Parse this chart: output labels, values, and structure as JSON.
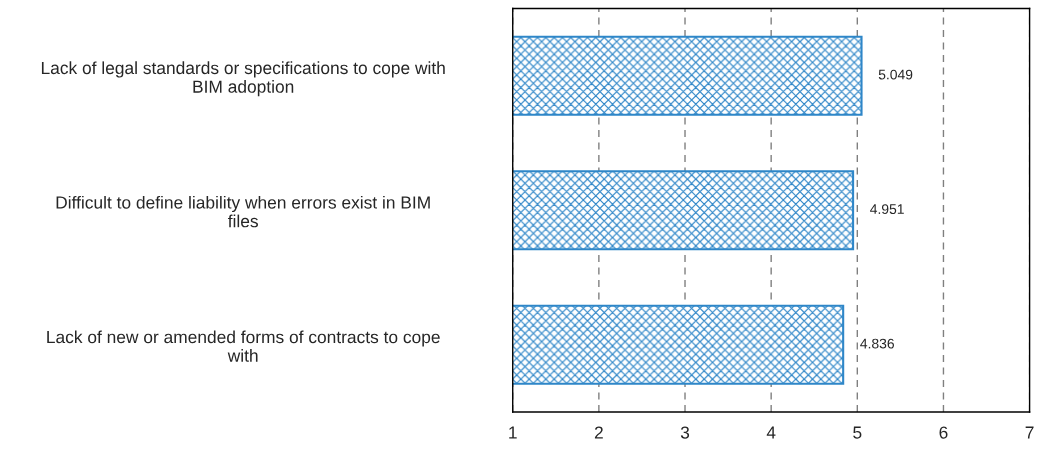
{
  "chart_data": {
    "type": "bar",
    "orientation": "horizontal",
    "categories": [
      "Lack of legal standards or specifications to cope with\nBIM adoption",
      "Difficult to define liability when errors exist in BIM\nfiles",
      "Lack of new or amended forms of contracts to cope\nwith"
    ],
    "values": [
      5.049,
      4.951,
      4.836
    ],
    "color": "#2e86c8",
    "xlim": [
      1,
      7
    ],
    "xticks": [
      1,
      2,
      3,
      4,
      5,
      6,
      7
    ],
    "grid": "x",
    "data_labels": true,
    "legend": false
  }
}
